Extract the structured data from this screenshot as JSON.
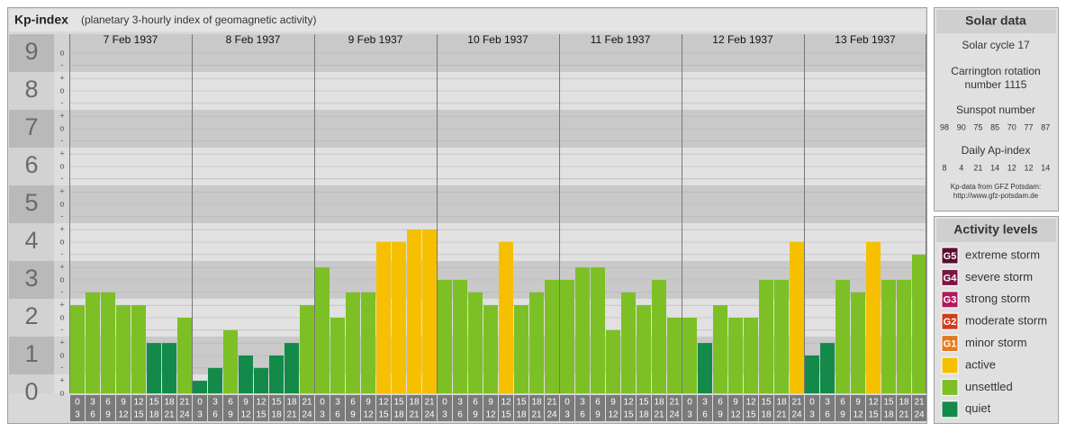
{
  "chart_data": {
    "type": "bar",
    "title": "Kp-index",
    "subtitle": "(planetary 3-hourly index of geomagnetic activity)",
    "categories": [
      "7 Feb 1937",
      "8 Feb 1937",
      "9 Feb 1937",
      "10 Feb 1937",
      "11 Feb 1937",
      "12 Feb 1937",
      "13 Feb 1937"
    ],
    "hour_start": [
      0,
      3,
      6,
      9,
      12,
      15,
      18,
      21
    ],
    "hour_end": [
      3,
      6,
      9,
      12,
      15,
      18,
      21,
      24
    ],
    "values": [
      [
        2.33,
        2.67,
        2.67,
        2.33,
        2.33,
        1.33,
        1.33,
        2
      ],
      [
        0.33,
        0.67,
        1.67,
        1,
        0.67,
        1,
        1.33,
        2.33
      ],
      [
        3.33,
        2,
        2.67,
        2.67,
        4,
        4,
        4.33,
        4.33
      ],
      [
        3,
        3,
        2.67,
        2.33,
        4,
        2.33,
        2.67,
        3
      ],
      [
        3,
        3.33,
        3.33,
        1.67,
        2.67,
        2.33,
        3,
        2
      ],
      [
        2,
        1.33,
        2.33,
        2,
        2,
        3,
        3,
        4
      ],
      [
        1,
        1.33,
        3,
        2.67,
        4,
        3,
        3,
        3.67
      ]
    ],
    "colors": [
      [
        "#7cc026",
        "#7cc026",
        "#7cc026",
        "#7cc026",
        "#7cc026",
        "#138a4a",
        "#138a4a",
        "#7cc026"
      ],
      [
        "#138a4a",
        "#138a4a",
        "#7cc026",
        "#138a4a",
        "#138a4a",
        "#138a4a",
        "#138a4a",
        "#7cc026"
      ],
      [
        "#7cc026",
        "#7cc026",
        "#7cc026",
        "#7cc026",
        "#f6c000",
        "#f6c000",
        "#f6c000",
        "#f6c000"
      ],
      [
        "#7cc026",
        "#7cc026",
        "#7cc026",
        "#7cc026",
        "#f6c000",
        "#7cc026",
        "#7cc026",
        "#7cc026"
      ],
      [
        "#7cc026",
        "#7cc026",
        "#7cc026",
        "#7cc026",
        "#7cc026",
        "#7cc026",
        "#7cc026",
        "#7cc026"
      ],
      [
        "#7cc026",
        "#138a4a",
        "#7cc026",
        "#7cc026",
        "#7cc026",
        "#7cc026",
        "#7cc026",
        "#f6c000"
      ],
      [
        "#138a4a",
        "#138a4a",
        "#7cc026",
        "#7cc026",
        "#f6c000",
        "#7cc026",
        "#7cc026",
        "#7cc026"
      ]
    ],
    "ylim": [
      0,
      9.5
    ],
    "yticks": [
      0,
      1,
      2,
      3,
      4,
      5,
      6,
      7,
      8,
      9
    ],
    "yticks_minor": [
      {
        "value": 0,
        "label": "o"
      },
      {
        "value": 0.33,
        "label": "+"
      },
      {
        "value": 0.67,
        "label": "-"
      },
      {
        "value": 1,
        "label": "o"
      },
      {
        "value": 1.33,
        "label": "+"
      },
      {
        "value": 1.67,
        "label": "-"
      },
      {
        "value": 2,
        "label": "o"
      },
      {
        "value": 2.33,
        "label": "+"
      },
      {
        "value": 2.67,
        "label": "-"
      },
      {
        "value": 3,
        "label": "o"
      },
      {
        "value": 3.33,
        "label": "+"
      },
      {
        "value": 3.67,
        "label": "-"
      },
      {
        "value": 4,
        "label": "o"
      },
      {
        "value": 4.33,
        "label": "+"
      },
      {
        "value": 4.67,
        "label": "-"
      },
      {
        "value": 5,
        "label": "o"
      },
      {
        "value": 5.33,
        "label": "+"
      },
      {
        "value": 5.67,
        "label": "-"
      },
      {
        "value": 6,
        "label": "o"
      },
      {
        "value": 6.33,
        "label": "+"
      },
      {
        "value": 6.67,
        "label": "-"
      },
      {
        "value": 7,
        "label": "o"
      },
      {
        "value": 7.33,
        "label": "+"
      },
      {
        "value": 7.67,
        "label": "-"
      },
      {
        "value": 8,
        "label": "o"
      },
      {
        "value": 8.33,
        "label": "+"
      },
      {
        "value": 8.67,
        "label": "-"
      },
      {
        "value": 9,
        "label": "o"
      }
    ],
    "grid": true
  },
  "solar_data": {
    "title": "Solar data",
    "solar_cycle": "Solar cycle 17",
    "carrington": [
      "Carrington rotation",
      "number 1115"
    ],
    "sunspot_title": "Sunspot number",
    "sunspot_numbers": [
      98,
      90,
      75,
      85,
      70,
      77,
      87
    ],
    "ap_title": "Daily Ap-index",
    "ap_values": [
      8,
      4,
      21,
      14,
      12,
      12,
      14
    ],
    "source": [
      "Kp-data from GFZ Potsdam:",
      "http://www.gfz-potsdam.de"
    ]
  },
  "activity_levels": {
    "title": "Activity levels",
    "items": [
      {
        "badge": "G5",
        "label": "extreme storm",
        "color": "#5c0a2e"
      },
      {
        "badge": "G4",
        "label": "severe storm",
        "color": "#7c1446"
      },
      {
        "badge": "G3",
        "label": "strong storm",
        "color": "#b01a5c"
      },
      {
        "badge": "G2",
        "label": "moderate storm",
        "color": "#d23c1e"
      },
      {
        "badge": "G1",
        "label": "minor storm",
        "color": "#e27a22"
      },
      {
        "label": "active",
        "color": "#f6c000"
      },
      {
        "label": "unsettled",
        "color": "#7cc026"
      },
      {
        "label": "quiet",
        "color": "#138a4a"
      }
    ]
  }
}
